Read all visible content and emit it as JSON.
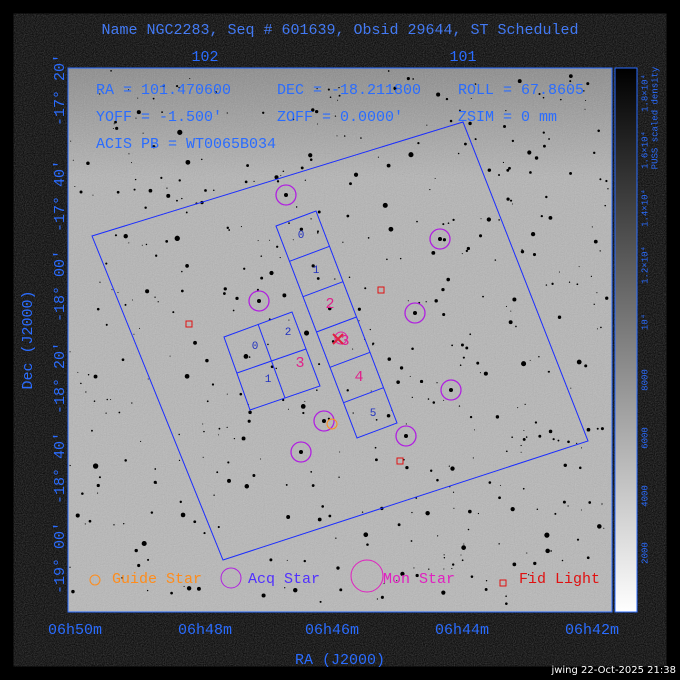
{
  "title": "Name NGC2283, Seq # 601639, Obsid 29644, ST Scheduled",
  "top_axis": [
    "102",
    "101"
  ],
  "left_axis": [
    "-17° 20'",
    "-17° 40'",
    "-18° 00'",
    "-18° 20'",
    "-18° 40'",
    "-19° 00'"
  ],
  "bottom_axis": [
    "06h50m",
    "06h48m",
    "06h46m",
    "06h44m",
    "06h42m"
  ],
  "x_axis_title": "RA (J2000)",
  "y_axis_title": "Dec (J2000)",
  "info": {
    "ra": "RA = 101.470600",
    "dec": "DEC = -18.211800",
    "roll": "ROLL = 67.8605",
    "yoff": "YOFF = -1.500'",
    "zoff": "ZOFF = 0.0000'",
    "zsim": "ZSIM = 0 mm",
    "acis": "ACIS PB = WT0065B034"
  },
  "i_array_chips": [
    "0",
    "1",
    "2",
    "3"
  ],
  "s_array_chips": [
    "0",
    "1",
    "2",
    "3",
    "4",
    "5"
  ],
  "legend": [
    "Guide Star",
    "Acq Star",
    "Mon Star",
    "Fid Light"
  ],
  "colorbar": {
    "title": "PUSS scaled density",
    "labels": [
      "2000",
      "4000",
      "6000",
      "8000",
      "10⁴",
      "1.2×10⁴",
      "1.4×10⁴",
      "1.6×10⁴",
      "1.8×10⁴"
    ]
  },
  "footer": "jwing 22-Oct-2025 21:38"
}
